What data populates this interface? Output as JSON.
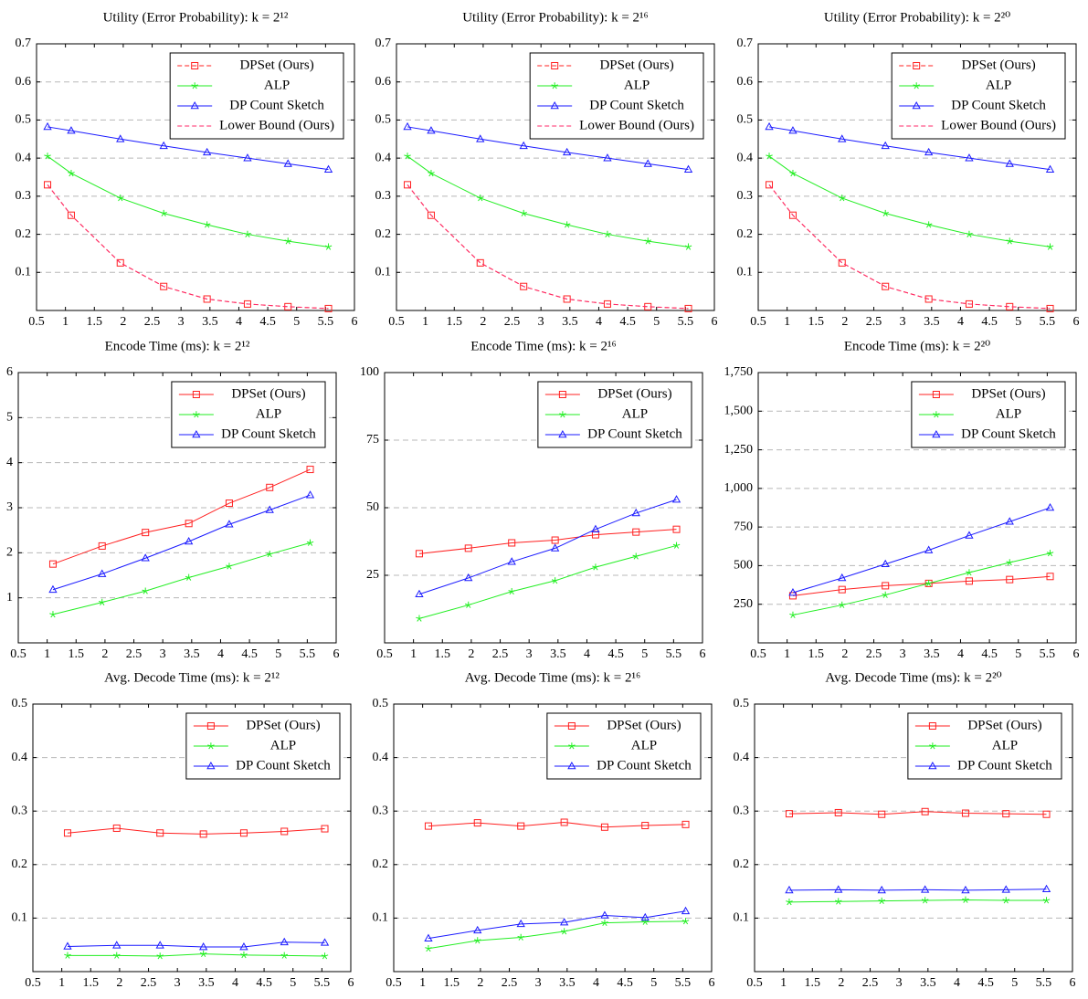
{
  "chart_data": [
    {
      "type": "line",
      "title": "Utility (Error Probability): k = 2¹²",
      "x": [
        0.69,
        1.1,
        1.95,
        2.7,
        3.45,
        4.15,
        4.85,
        5.55
      ],
      "xlim": [
        0.5,
        6
      ],
      "xticks": [
        0.5,
        1,
        1.5,
        2,
        2.5,
        3,
        3.5,
        4,
        4.5,
        5,
        5.5,
        6
      ],
      "ylim": [
        0,
        0.7
      ],
      "yticks": [
        0.1,
        0.2,
        0.3,
        0.4,
        0.5,
        0.6,
        0.7
      ],
      "grid": true,
      "legend": "upper right",
      "series": [
        {
          "name": "DPSet (Ours)",
          "color": "#ff2020",
          "marker": "square",
          "dashed": true,
          "values": [
            0.33,
            0.25,
            0.125,
            0.063,
            0.03,
            0.017,
            0.01,
            0.005
          ]
        },
        {
          "name": "ALP",
          "color": "#22ee22",
          "marker": "star",
          "dashed": false,
          "values": [
            0.405,
            0.36,
            0.295,
            0.255,
            0.225,
            0.2,
            0.182,
            0.167
          ]
        },
        {
          "name": "DP Count Sketch",
          "color": "#1a1aff",
          "marker": "triangle",
          "dashed": false,
          "values": [
            0.482,
            0.472,
            0.45,
            0.432,
            0.415,
            0.4,
            0.385,
            0.37
          ]
        },
        {
          "name": "Lower Bound (Ours)",
          "color": "#ff2a6a",
          "marker": "none",
          "dashed": true,
          "values": [
            0.33,
            0.25,
            0.125,
            0.063,
            0.03,
            0.017,
            0.01,
            0.005
          ]
        }
      ]
    },
    {
      "type": "line",
      "title": "Utility (Error Probability): k = 2¹⁶",
      "x": [
        0.69,
        1.1,
        1.95,
        2.7,
        3.45,
        4.15,
        4.85,
        5.55
      ],
      "xlim": [
        0.5,
        6
      ],
      "xticks": [
        0.5,
        1,
        1.5,
        2,
        2.5,
        3,
        3.5,
        4,
        4.5,
        5,
        5.5,
        6
      ],
      "ylim": [
        0,
        0.7
      ],
      "yticks": [
        0.1,
        0.2,
        0.3,
        0.4,
        0.5,
        0.6,
        0.7
      ],
      "grid": true,
      "legend": "upper right",
      "series": [
        {
          "name": "DPSet (Ours)",
          "color": "#ff2020",
          "marker": "square",
          "dashed": true,
          "values": [
            0.33,
            0.25,
            0.125,
            0.063,
            0.03,
            0.017,
            0.01,
            0.005
          ]
        },
        {
          "name": "ALP",
          "color": "#22ee22",
          "marker": "star",
          "dashed": false,
          "values": [
            0.405,
            0.36,
            0.295,
            0.255,
            0.225,
            0.2,
            0.182,
            0.167
          ]
        },
        {
          "name": "DP Count Sketch",
          "color": "#1a1aff",
          "marker": "triangle",
          "dashed": false,
          "values": [
            0.482,
            0.472,
            0.45,
            0.432,
            0.415,
            0.4,
            0.385,
            0.37
          ]
        },
        {
          "name": "Lower Bound (Ours)",
          "color": "#ff2a6a",
          "marker": "none",
          "dashed": true,
          "values": [
            0.33,
            0.25,
            0.125,
            0.063,
            0.03,
            0.017,
            0.01,
            0.005
          ]
        }
      ]
    },
    {
      "type": "line",
      "title": "Utility (Error Probability): k = 2²⁰",
      "x": [
        0.69,
        1.1,
        1.95,
        2.7,
        3.45,
        4.15,
        4.85,
        5.55
      ],
      "xlim": [
        0.5,
        6
      ],
      "xticks": [
        0.5,
        1,
        1.5,
        2,
        2.5,
        3,
        3.5,
        4,
        4.5,
        5,
        5.5,
        6
      ],
      "ylim": [
        0,
        0.7
      ],
      "yticks": [
        0.1,
        0.2,
        0.3,
        0.4,
        0.5,
        0.6,
        0.7
      ],
      "grid": true,
      "legend": "upper right",
      "series": [
        {
          "name": "DPSet (Ours)",
          "color": "#ff2020",
          "marker": "square",
          "dashed": true,
          "values": [
            0.33,
            0.25,
            0.125,
            0.063,
            0.03,
            0.017,
            0.01,
            0.005
          ]
        },
        {
          "name": "ALP",
          "color": "#22ee22",
          "marker": "star",
          "dashed": false,
          "values": [
            0.405,
            0.36,
            0.295,
            0.255,
            0.225,
            0.2,
            0.182,
            0.167
          ]
        },
        {
          "name": "DP Count Sketch",
          "color": "#1a1aff",
          "marker": "triangle",
          "dashed": false,
          "values": [
            0.482,
            0.472,
            0.45,
            0.432,
            0.415,
            0.4,
            0.385,
            0.37
          ]
        },
        {
          "name": "Lower Bound (Ours)",
          "color": "#ff2a6a",
          "marker": "none",
          "dashed": true,
          "values": [
            0.33,
            0.25,
            0.125,
            0.063,
            0.03,
            0.017,
            0.01,
            0.005
          ]
        }
      ]
    },
    {
      "type": "line",
      "title": "Encode Time (ms): k = 2¹²",
      "x": [
        1.1,
        1.95,
        2.7,
        3.45,
        4.15,
        4.85,
        5.55
      ],
      "xlim": [
        0.5,
        6
      ],
      "xticks": [
        0.5,
        1,
        1.5,
        2,
        2.5,
        3,
        3.5,
        4,
        4.5,
        5,
        5.5,
        6
      ],
      "ylim": [
        0,
        6
      ],
      "yticks": [
        1,
        2,
        3,
        4,
        5,
        6
      ],
      "grid": true,
      "legend": "upper right",
      "series": [
        {
          "name": "DPSet (Ours)",
          "color": "#ff2020",
          "marker": "square",
          "dashed": false,
          "values": [
            1.75,
            2.15,
            2.45,
            2.65,
            3.1,
            3.45,
            3.85
          ]
        },
        {
          "name": "ALP",
          "color": "#22ee22",
          "marker": "star",
          "dashed": false,
          "values": [
            0.63,
            0.9,
            1.15,
            1.45,
            1.7,
            1.97,
            2.22
          ]
        },
        {
          "name": "DP Count Sketch",
          "color": "#1a1aff",
          "marker": "triangle",
          "dashed": false,
          "values": [
            1.18,
            1.53,
            1.88,
            2.25,
            2.63,
            2.95,
            3.28
          ]
        }
      ]
    },
    {
      "type": "line",
      "title": "Encode Time (ms): k = 2¹⁶",
      "x": [
        1.1,
        1.95,
        2.7,
        3.45,
        4.15,
        4.85,
        5.55
      ],
      "xlim": [
        0.5,
        6
      ],
      "xticks": [
        0.5,
        1,
        1.5,
        2,
        2.5,
        3,
        3.5,
        4,
        4.5,
        5,
        5.5,
        6
      ],
      "ylim": [
        0,
        100
      ],
      "yticks": [
        25,
        50,
        75,
        100
      ],
      "grid": true,
      "legend": "upper right",
      "series": [
        {
          "name": "DPSet (Ours)",
          "color": "#ff2020",
          "marker": "square",
          "dashed": false,
          "values": [
            33,
            35,
            37,
            38,
            40,
            41,
            42
          ]
        },
        {
          "name": "ALP",
          "color": "#22ee22",
          "marker": "star",
          "dashed": false,
          "values": [
            9,
            14,
            19,
            23,
            28,
            32,
            36
          ]
        },
        {
          "name": "DP Count Sketch",
          "color": "#1a1aff",
          "marker": "triangle",
          "dashed": false,
          "values": [
            18,
            24,
            30,
            35,
            42,
            48,
            53
          ]
        }
      ]
    },
    {
      "type": "line",
      "title": "Encode Time (ms): k = 2²⁰",
      "x": [
        1.1,
        1.95,
        2.7,
        3.45,
        4.15,
        4.85,
        5.55
      ],
      "xlim": [
        0.5,
        6
      ],
      "xticks": [
        0.5,
        1,
        1.5,
        2,
        2.5,
        3,
        3.5,
        4,
        4.5,
        5,
        5.5,
        6
      ],
      "ylim": [
        0,
        1750
      ],
      "yticks": [
        250,
        500,
        750,
        {
          "value": 1000,
          "label": "1,000"
        },
        {
          "value": 1250,
          "label": "1,250"
        },
        {
          "value": 1500,
          "label": "1,500"
        },
        {
          "value": 1750,
          "label": "1,750"
        }
      ],
      "grid": true,
      "legend": "upper right",
      "series": [
        {
          "name": "DPSet (Ours)",
          "color": "#ff2020",
          "marker": "square",
          "dashed": false,
          "values": [
            305,
            345,
            370,
            385,
            400,
            410,
            430
          ]
        },
        {
          "name": "ALP",
          "color": "#22ee22",
          "marker": "star",
          "dashed": false,
          "values": [
            180,
            245,
            310,
            385,
            455,
            520,
            580
          ]
        },
        {
          "name": "DP Count Sketch",
          "color": "#1a1aff",
          "marker": "triangle",
          "dashed": false,
          "values": [
            325,
            420,
            510,
            600,
            695,
            785,
            875
          ]
        }
      ]
    },
    {
      "type": "line",
      "title": "Avg. Decode Time (ms): k = 2¹²",
      "x": [
        1.1,
        1.95,
        2.7,
        3.45,
        4.15,
        4.85,
        5.55
      ],
      "xlim": [
        0.5,
        6
      ],
      "xticks": [
        0.5,
        1,
        1.5,
        2,
        2.5,
        3,
        3.5,
        4,
        4.5,
        5,
        5.5,
        6
      ],
      "ylim": [
        0,
        0.5
      ],
      "yticks": [
        0.1,
        0.2,
        0.3,
        0.4,
        0.5
      ],
      "grid": true,
      "legend": "upper right",
      "series": [
        {
          "name": "DPSet (Ours)",
          "color": "#ff2020",
          "marker": "square",
          "dashed": false,
          "values": [
            0.259,
            0.268,
            0.259,
            0.257,
            0.259,
            0.262,
            0.267
          ]
        },
        {
          "name": "ALP",
          "color": "#22ee22",
          "marker": "star",
          "dashed": false,
          "values": [
            0.03,
            0.03,
            0.029,
            0.033,
            0.031,
            0.03,
            0.029
          ]
        },
        {
          "name": "DP Count Sketch",
          "color": "#1a1aff",
          "marker": "triangle",
          "dashed": false,
          "values": [
            0.047,
            0.049,
            0.049,
            0.046,
            0.046,
            0.055,
            0.054
          ]
        }
      ]
    },
    {
      "type": "line",
      "title": "Avg. Decode Time (ms): k = 2¹⁶",
      "x": [
        1.1,
        1.95,
        2.7,
        3.45,
        4.15,
        4.85,
        5.55
      ],
      "xlim": [
        0.5,
        6
      ],
      "xticks": [
        0.5,
        1,
        1.5,
        2,
        2.5,
        3,
        3.5,
        4,
        4.5,
        5,
        5.5,
        6
      ],
      "ylim": [
        0,
        0.5
      ],
      "yticks": [
        0.1,
        0.2,
        0.3,
        0.4,
        0.5
      ],
      "grid": true,
      "legend": "upper right",
      "series": [
        {
          "name": "DPSet (Ours)",
          "color": "#ff2020",
          "marker": "square",
          "dashed": false,
          "values": [
            0.272,
            0.278,
            0.272,
            0.279,
            0.27,
            0.273,
            0.275
          ]
        },
        {
          "name": "ALP",
          "color": "#22ee22",
          "marker": "star",
          "dashed": false,
          "values": [
            0.043,
            0.058,
            0.064,
            0.075,
            0.091,
            0.093,
            0.094
          ]
        },
        {
          "name": "DP Count Sketch",
          "color": "#1a1aff",
          "marker": "triangle",
          "dashed": false,
          "values": [
            0.062,
            0.077,
            0.089,
            0.092,
            0.105,
            0.101,
            0.113
          ]
        }
      ]
    },
    {
      "type": "line",
      "title": "Avg. Decode Time (ms): k = 2²⁰",
      "x": [
        1.1,
        1.95,
        2.7,
        3.45,
        4.15,
        4.85,
        5.55
      ],
      "xlim": [
        0.5,
        6
      ],
      "xticks": [
        0.5,
        1,
        1.5,
        2,
        2.5,
        3,
        3.5,
        4,
        4.5,
        5,
        5.5,
        6
      ],
      "ylim": [
        0,
        0.5
      ],
      "yticks": [
        0.1,
        0.2,
        0.3,
        0.4,
        0.5
      ],
      "grid": true,
      "legend": "upper right",
      "series": [
        {
          "name": "DPSet (Ours)",
          "color": "#ff2020",
          "marker": "square",
          "dashed": false,
          "values": [
            0.295,
            0.297,
            0.294,
            0.299,
            0.296,
            0.295,
            0.294
          ]
        },
        {
          "name": "ALP",
          "color": "#22ee22",
          "marker": "star",
          "dashed": false,
          "values": [
            0.13,
            0.131,
            0.132,
            0.133,
            0.134,
            0.133,
            0.133
          ]
        },
        {
          "name": "DP Count Sketch",
          "color": "#1a1aff",
          "marker": "triangle",
          "dashed": false,
          "values": [
            0.152,
            0.153,
            0.152,
            0.153,
            0.152,
            0.153,
            0.154
          ]
        }
      ]
    }
  ]
}
